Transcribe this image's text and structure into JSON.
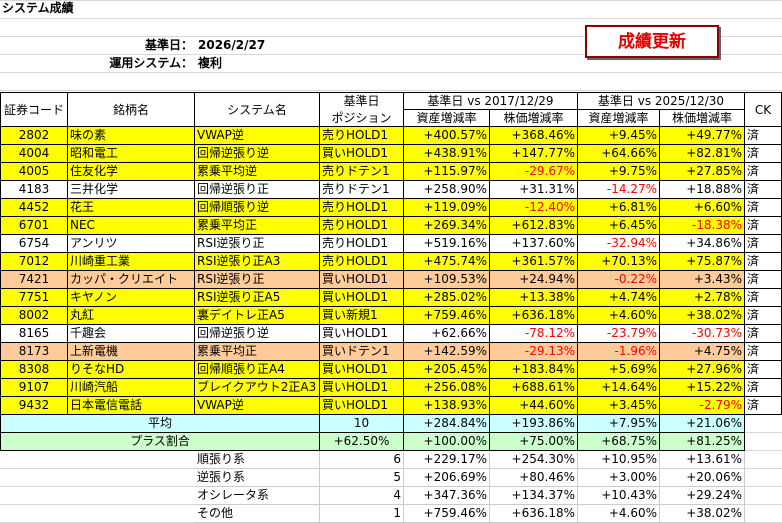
{
  "header": {
    "title": "システム成績",
    "base_date_label": "基準日：",
    "base_date": "2026/2/27",
    "system_label": "運用システム：",
    "system": "複利",
    "button": "成績更新"
  },
  "table": {
    "columns": {
      "code": "証券コード",
      "name": "銘柄名",
      "system": "システム名",
      "position_top": "基準日",
      "position": "ポジション",
      "ck": "CK"
    },
    "groups": [
      {
        "label": "基準日 vs 2017/12/29",
        "sub": [
          "資産増減率",
          "株価増減率"
        ]
      },
      {
        "label": "基準日 vs 2025/12/30",
        "sub": [
          "資産増減率",
          "株価増減率"
        ]
      }
    ],
    "rows": [
      {
        "code": "2802",
        "name": "味の素",
        "system": "VWAP逆",
        "position": "売りHOLD1",
        "values": [
          "+400.57%",
          "+368.46%",
          "+9.45%",
          "+49.77%"
        ],
        "ck": "済",
        "fill": "#ffff00"
      },
      {
        "code": "4004",
        "name": "昭和電工",
        "system": "回帰逆張り逆",
        "position": "買いHOLD1",
        "values": [
          "+438.91%",
          "+147.77%",
          "+64.66%",
          "+82.81%"
        ],
        "ck": "済",
        "fill": "#ffff00"
      },
      {
        "code": "4005",
        "name": "住友化学",
        "system": "累乗平均逆",
        "position": "売りドテン1",
        "values": [
          "+115.97%",
          "-29.67%",
          "+9.75%",
          "+27.85%"
        ],
        "ck": "済",
        "fill": "#ffff00"
      },
      {
        "code": "4183",
        "name": "三井化学",
        "system": "回帰逆張り正",
        "position": "売りドテン1",
        "values": [
          "+258.90%",
          "+31.31%",
          "-14.27%",
          "+18.88%"
        ],
        "ck": "済",
        "fill": "#ffffff"
      },
      {
        "code": "4452",
        "name": "花王",
        "system": "回帰順張り逆",
        "position": "売りHOLD1",
        "values": [
          "+119.09%",
          "-12.40%",
          "+6.81%",
          "+6.60%"
        ],
        "ck": "済",
        "fill": "#ffff00"
      },
      {
        "code": "6701",
        "name": "NEC",
        "system": "累乗平均正",
        "position": "売りHOLD1",
        "values": [
          "+269.34%",
          "+612.83%",
          "+6.45%",
          "-18.38%"
        ],
        "ck": "済",
        "fill": "#ffff00"
      },
      {
        "code": "6754",
        "name": "アンリツ",
        "system": "RSI逆張り正",
        "position": "売りHOLD1",
        "values": [
          "+519.16%",
          "+137.60%",
          "-32.94%",
          "+34.86%"
        ],
        "ck": "済",
        "fill": "#ffffff"
      },
      {
        "code": "7012",
        "name": "川崎重工業",
        "system": "RSI逆張り正A3",
        "position": "売りHOLD1",
        "values": [
          "+475.74%",
          "+361.57%",
          "+70.13%",
          "+75.87%"
        ],
        "ck": "済",
        "fill": "#ffff00"
      },
      {
        "code": "7421",
        "name": "カッパ・クリエイト",
        "system": "RSI逆張り正",
        "position": "買いHOLD1",
        "values": [
          "+109.53%",
          "+24.94%",
          "-0.22%",
          "+3.43%"
        ],
        "ck": "済",
        "fill": "#ffcc99"
      },
      {
        "code": "7751",
        "name": "キヤノン",
        "system": "RSI逆張り正A5",
        "position": "買いHOLD1",
        "values": [
          "+285.02%",
          "+13.38%",
          "+4.74%",
          "+2.78%"
        ],
        "ck": "済",
        "fill": "#ffff00"
      },
      {
        "code": "8002",
        "name": "丸紅",
        "system": "裏デイトレ正A5",
        "position": "買い新規1",
        "values": [
          "+759.46%",
          "+636.18%",
          "+4.60%",
          "+38.02%"
        ],
        "ck": "済",
        "fill": "#ffff00"
      },
      {
        "code": "8165",
        "name": "千趣会",
        "system": "回帰逆張り逆",
        "position": "買いHOLD1",
        "values": [
          "+62.66%",
          "-78.12%",
          "-23.79%",
          "-30.73%"
        ],
        "ck": "済",
        "fill": "#ffffff"
      },
      {
        "code": "8173",
        "name": "上新電機",
        "system": "累乗平均正",
        "position": "買いドテン1",
        "values": [
          "+142.59%",
          "-29.13%",
          "-1.96%",
          "+4.75%"
        ],
        "ck": "済",
        "fill": "#ffcc99"
      },
      {
        "code": "8308",
        "name": "りそなHD",
        "system": "回帰順張り正A4",
        "position": "買いHOLD1",
        "values": [
          "+205.45%",
          "+183.84%",
          "+5.69%",
          "+27.96%"
        ],
        "ck": "済",
        "fill": "#ffff00"
      },
      {
        "code": "9107",
        "name": "川崎汽船",
        "system": "ブレイクアウト2正A3",
        "position": "買いHOLD1",
        "values": [
          "+256.08%",
          "+688.61%",
          "+14.64%",
          "+15.22%"
        ],
        "ck": "済",
        "fill": "#ffff00"
      },
      {
        "code": "9432",
        "name": "日本電信電話",
        "system": "VWAP逆",
        "position": "買いHOLD1",
        "values": [
          "+138.93%",
          "+44.60%",
          "+3.45%",
          "-2.79%"
        ],
        "ck": "済",
        "fill": "#ffff00"
      }
    ],
    "summary": [
      {
        "label": "平均",
        "count": "10",
        "values": [
          "+284.84%",
          "+193.86%",
          "+7.95%",
          "+21.06%"
        ],
        "fill": "#ccffff"
      },
      {
        "label": "プラス割合",
        "count": "+62.50%",
        "values": [
          "+100.00%",
          "+75.00%",
          "+68.75%",
          "+81.25%"
        ],
        "fill": "#ccffcc"
      }
    ],
    "categories": [
      {
        "label": "順張り系",
        "count": "6",
        "values": [
          "+229.17%",
          "+254.30%",
          "+10.95%",
          "+13.61%"
        ]
      },
      {
        "label": "逆張り系",
        "count": "5",
        "values": [
          "+206.69%",
          "+80.46%",
          "+3.00%",
          "+20.06%"
        ]
      },
      {
        "label": "オシレータ系",
        "count": "4",
        "values": [
          "+347.36%",
          "+134.37%",
          "+10.43%",
          "+29.24%"
        ]
      },
      {
        "label": "その他",
        "count": "1",
        "values": [
          "+759.46%",
          "+636.18%",
          "+4.60%",
          "+38.02%"
        ]
      }
    ]
  }
}
